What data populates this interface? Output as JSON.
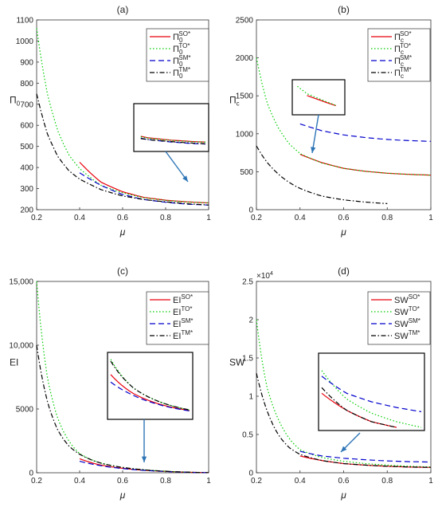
{
  "colors": {
    "SO": "#e8000b",
    "TO": "#00cc00",
    "SM": "#0000cc",
    "TM": "#000000",
    "arrow": "#2e75b6"
  },
  "chart_data": [
    {
      "type": "line",
      "title": "(a)",
      "xlabel": "μ",
      "ylabel": {
        "base": "Π",
        "sub": "0"
      },
      "xlim": [
        0.2,
        1
      ],
      "ylim": [
        200,
        1100
      ],
      "xticks": [
        "0.2",
        "0.4",
        "0.6",
        "0.8",
        "1"
      ],
      "yticks": [
        "200",
        "300",
        "400",
        "500",
        "600",
        "700",
        "800",
        "900",
        "1000",
        "1100"
      ],
      "legend_position": "top-right",
      "inset": {
        "x": [
          0.65,
          0.95
        ],
        "y": [
          200,
          430
        ]
      },
      "series": [
        {
          "key": "SO",
          "label": {
            "base": "Π",
            "sub": "0",
            "sup": "SO*"
          },
          "x": [
            0.4,
            0.5,
            0.6,
            0.7,
            0.8,
            0.9,
            1.0
          ],
          "y": [
            425,
            330,
            285,
            258,
            245,
            237,
            232
          ]
        },
        {
          "key": "TO",
          "label": {
            "base": "Π",
            "sub": "0",
            "sup": "TO*"
          },
          "x": [
            0.2,
            0.25,
            0.3,
            0.35,
            0.4,
            0.5,
            0.6,
            0.7,
            0.8,
            0.9,
            1.0
          ],
          "y": [
            1060,
            750,
            570,
            460,
            395,
            315,
            280,
            256,
            244,
            236,
            232
          ]
        },
        {
          "key": "SM",
          "label": {
            "base": "Π",
            "sub": "0",
            "sup": "SM*"
          },
          "x": [
            0.4,
            0.5,
            0.6,
            0.7,
            0.8,
            0.9,
            1.0
          ],
          "y": [
            375,
            315,
            272,
            248,
            235,
            226,
            222
          ]
        },
        {
          "key": "TM",
          "label": {
            "base": "Π",
            "sub": "0",
            "sup": "TM*"
          },
          "x": [
            0.2,
            0.25,
            0.3,
            0.35,
            0.4,
            0.5,
            0.6,
            0.7,
            0.8,
            0.9,
            1.0
          ],
          "y": [
            750,
            560,
            450,
            385,
            345,
            295,
            265,
            248,
            237,
            228,
            222
          ]
        }
      ]
    },
    {
      "type": "line",
      "title": "(b)",
      "xlabel": "μ",
      "ylabel": {
        "base": "Π",
        "sub": "c"
      },
      "xlim": [
        0.2,
        1
      ],
      "ylim": [
        0,
        2500
      ],
      "xticks": [
        "0.2",
        "0.4",
        "0.6",
        "0.8",
        "1"
      ],
      "yticks": [
        "0",
        "500",
        "1000",
        "1500",
        "2000",
        "2500"
      ],
      "legend_position": "top-right",
      "inset": {
        "x": [
          0.38,
          0.46
        ],
        "y": [
          640,
          800
        ]
      },
      "series": [
        {
          "key": "SO",
          "label": {
            "base": "Π",
            "sub": "c",
            "sup": "SO*"
          },
          "x": [
            0.4,
            0.5,
            0.6,
            0.7,
            0.8,
            0.9,
            1.0
          ],
          "y": [
            730,
            620,
            545,
            505,
            480,
            465,
            455
          ]
        },
        {
          "key": "TO",
          "label": {
            "base": "Π",
            "sub": "c",
            "sup": "TO*"
          },
          "x": [
            0.2,
            0.25,
            0.3,
            0.35,
            0.4,
            0.5,
            0.6,
            0.7,
            0.8,
            0.9,
            1.0
          ],
          "y": [
            2000,
            1400,
            1080,
            870,
            740,
            615,
            545,
            505,
            480,
            465,
            455
          ]
        },
        {
          "key": "SM",
          "label": {
            "base": "Π",
            "sub": "c",
            "sup": "SM*"
          },
          "x": [
            0.4,
            0.5,
            0.6,
            0.7,
            0.8,
            0.9,
            1.0
          ],
          "y": [
            1130,
            1040,
            985,
            950,
            925,
            910,
            900
          ]
        },
        {
          "key": "TM",
          "label": {
            "base": "Π",
            "sub": "c",
            "sup": "TM*"
          },
          "x": [
            0.2,
            0.25,
            0.3,
            0.35,
            0.4,
            0.5,
            0.6,
            0.7,
            0.8
          ],
          "y": [
            840,
            620,
            470,
            360,
            280,
            180,
            130,
            100,
            80
          ]
        }
      ]
    },
    {
      "type": "line",
      "title": "(c)",
      "xlabel": "μ",
      "ylabel": {
        "base": "EI"
      },
      "xlim": [
        0.2,
        1
      ],
      "ylim": [
        0,
        15000
      ],
      "xticks": [
        "0.2",
        "0.4",
        "0.6",
        "0.8",
        "1"
      ],
      "yticks": [
        "0",
        "5000",
        "10,000",
        "15,000"
      ],
      "legend_position": "top-right",
      "inset": {
        "x": [
          0.4,
          0.75
        ],
        "y": [
          0,
          1600
        ]
      },
      "series": [
        {
          "key": "SO",
          "label": {
            "base": "EI",
            "sup": "SO*"
          },
          "x": [
            0.4,
            0.5,
            0.6,
            0.7,
            0.8,
            0.9,
            1.0
          ],
          "y": [
            1100,
            600,
            350,
            200,
            110,
            50,
            10
          ]
        },
        {
          "key": "TO",
          "label": {
            "base": "EI",
            "sup": "TO*"
          },
          "x": [
            0.2,
            0.25,
            0.3,
            0.35,
            0.4,
            0.5,
            0.6,
            0.7,
            0.8,
            0.9,
            1.0
          ],
          "y": [
            15000,
            7500,
            4200,
            2500,
            1500,
            750,
            420,
            230,
            120,
            50,
            10
          ]
        },
        {
          "key": "SM",
          "label": {
            "base": "EI",
            "sup": "SM*"
          },
          "x": [
            0.4,
            0.5,
            0.6,
            0.7,
            0.8,
            0.9,
            1.0
          ],
          "y": [
            900,
            550,
            330,
            190,
            100,
            45,
            10
          ]
        },
        {
          "key": "TM",
          "label": {
            "base": "EI",
            "sup": "TM*"
          },
          "x": [
            0.2,
            0.25,
            0.3,
            0.35,
            0.4,
            0.5,
            0.6,
            0.7,
            0.8,
            0.9,
            1.0
          ],
          "y": [
            10000,
            5600,
            3300,
            2100,
            1450,
            750,
            420,
            230,
            120,
            50,
            10
          ]
        }
      ]
    },
    {
      "type": "line",
      "title": "(d)",
      "xlabel": "μ",
      "ylabel": {
        "base": "SW"
      },
      "exponent": "×10",
      "exponent_power": "4",
      "xlim": [
        0.2,
        1
      ],
      "ylim": [
        0,
        2.5
      ],
      "xticks": [
        "0.2",
        "0.4",
        "0.6",
        "0.8",
        "1"
      ],
      "yticks": [
        "0",
        "0.5",
        "1",
        "1.5",
        "2",
        "2.5"
      ],
      "legend_position": "top-right",
      "inset": {
        "x": [
          0.4,
          0.8
        ],
        "y": [
          0.1,
          0.35
        ]
      },
      "series": [
        {
          "key": "SO",
          "label": {
            "base": "SW",
            "sup": "SO*"
          },
          "x": [
            0.4,
            0.5,
            0.6,
            0.7,
            0.8,
            0.9,
            1.0
          ],
          "y": [
            0.22,
            0.16,
            0.12,
            0.1,
            0.085,
            0.075,
            0.07
          ]
        },
        {
          "key": "TO",
          "label": {
            "base": "SW",
            "sup": "TO*"
          },
          "x": [
            0.2,
            0.25,
            0.3,
            0.35,
            0.4,
            0.5,
            0.6,
            0.7,
            0.8,
            0.9,
            1.0
          ],
          "y": [
            2.0,
            1.1,
            0.7,
            0.45,
            0.3,
            0.2,
            0.15,
            0.12,
            0.1,
            0.085,
            0.075
          ]
        },
        {
          "key": "SM",
          "label": {
            "base": "SW",
            "sup": "SM*"
          },
          "x": [
            0.4,
            0.5,
            0.6,
            0.7,
            0.8,
            0.9,
            1.0
          ],
          "y": [
            0.28,
            0.22,
            0.19,
            0.17,
            0.155,
            0.145,
            0.14
          ]
        },
        {
          "key": "TM",
          "label": {
            "base": "SW",
            "sup": "TM*"
          },
          "x": [
            0.2,
            0.25,
            0.3,
            0.35,
            0.4,
            0.5,
            0.6,
            0.7,
            0.8,
            0.9,
            1.0
          ],
          "y": [
            1.3,
            0.8,
            0.5,
            0.33,
            0.24,
            0.16,
            0.12,
            0.1,
            0.085,
            0.075,
            0.07
          ]
        }
      ]
    }
  ]
}
